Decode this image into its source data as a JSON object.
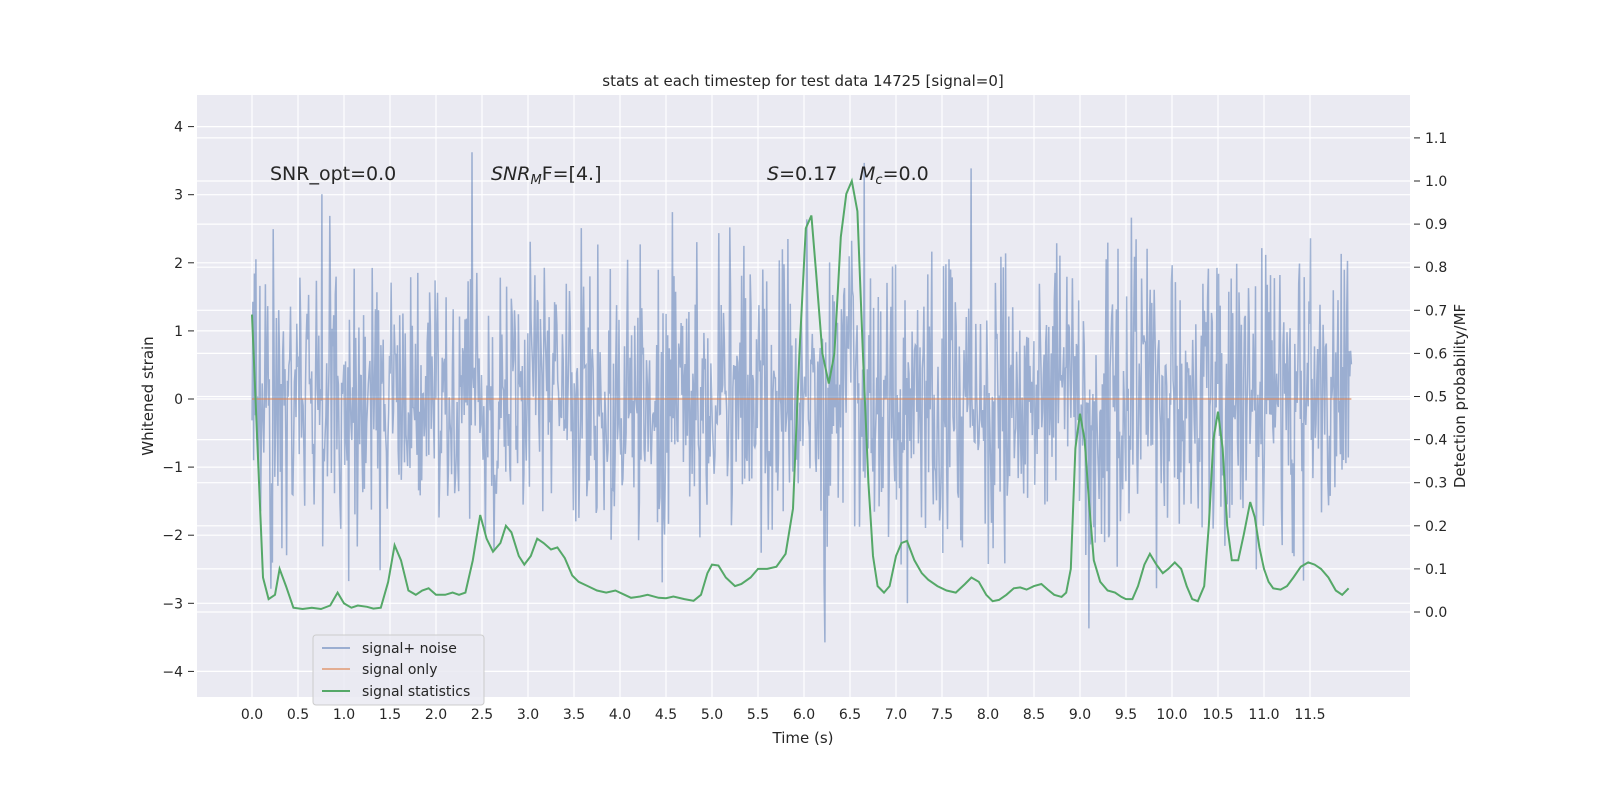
{
  "chart_data": {
    "type": "line",
    "title": "stats at each timestep for test data 14725 [signal=0]",
    "xlabel": "Time (s)",
    "ylabel_left": "Whitened strain",
    "ylabel_right": "Detection probability/MF",
    "xlim": [
      -0.6,
      12.6
    ],
    "ylim_left": [
      -4.4,
      4.4
    ],
    "ylim_right": [
      -0.2,
      1.2
    ],
    "x_ticks": [
      "0.0",
      "0.5",
      "1.0",
      "1.5",
      "2.0",
      "2.5",
      "3.0",
      "3.5",
      "4.0",
      "4.5",
      "5.0",
      "5.5",
      "6.0",
      "6.5",
      "7.0",
      "7.5",
      "8.0",
      "8.5",
      "9.0",
      "9.5",
      "10.0",
      "10.5",
      "11.0",
      "11.5"
    ],
    "y_ticks_left": [
      "4",
      "3",
      "2",
      "1",
      "0",
      "−1",
      "−2",
      "−3",
      "−4"
    ],
    "y_ticks_right": [
      "1.1",
      "1.0",
      "0.9",
      "0.8",
      "0.7",
      "0.6",
      "0.5",
      "0.4",
      "0.3",
      "0.2",
      "0.1",
      "0.0"
    ],
    "grid": true,
    "legend_position": "lower-left",
    "annotations": {
      "snr_opt": "SNR_opt=0.0",
      "snr_mf_main": "SNR",
      "snr_mf_sub": "M",
      "snr_mf_rest": "F=[4.]",
      "s_var": "S",
      "s_rest": "=0.17",
      "mc_var": "M",
      "mc_sub": "c",
      "mc_rest": "=0.0"
    },
    "series": [
      {
        "name": "signal+ noise",
        "color": "#4c72b0",
        "axis": "left",
        "x_range": [
          0,
          11.95
        ],
        "y_extremes": [
          -4.0,
          4.1
        ]
      },
      {
        "name": "signal only",
        "color": "#dd8452",
        "axis": "left",
        "x": [
          0,
          11.95
        ],
        "y": [
          0,
          0
        ]
      },
      {
        "name": "signal statistics",
        "color": "#55a868",
        "axis": "right",
        "x": [
          0.0,
          0.12,
          0.18,
          0.25,
          0.3,
          0.37,
          0.45,
          0.55,
          0.65,
          0.75,
          0.85,
          0.93,
          1.0,
          1.08,
          1.15,
          1.25,
          1.32,
          1.4,
          1.48,
          1.55,
          1.62,
          1.7,
          1.78,
          1.85,
          1.92,
          2.0,
          2.1,
          2.18,
          2.25,
          2.32,
          2.4,
          2.48,
          2.55,
          2.62,
          2.7,
          2.76,
          2.82,
          2.9,
          2.96,
          3.03,
          3.1,
          3.17,
          3.25,
          3.32,
          3.4,
          3.48,
          3.55,
          3.65,
          3.75,
          3.85,
          3.95,
          4.05,
          4.12,
          4.22,
          4.3,
          4.42,
          4.5,
          4.58,
          4.7,
          4.8,
          4.88,
          4.95,
          5.0,
          5.07,
          5.15,
          5.25,
          5.32,
          5.42,
          5.5,
          5.6,
          5.7,
          5.8,
          5.88,
          5.95,
          6.02,
          6.08,
          6.13,
          6.2,
          6.27,
          6.33,
          6.4,
          6.46,
          6.52,
          6.58,
          6.64,
          6.7,
          6.75,
          6.8,
          6.87,
          6.93,
          7.0,
          7.06,
          7.12,
          7.2,
          7.28,
          7.35,
          7.45,
          7.55,
          7.65,
          7.75,
          7.82,
          7.9,
          7.98,
          8.05,
          8.12,
          8.2,
          8.28,
          8.35,
          8.42,
          8.5,
          8.58,
          8.65,
          8.72,
          8.8,
          8.85,
          8.9,
          8.95,
          9.0,
          9.05,
          9.1,
          9.15,
          9.22,
          9.3,
          9.38,
          9.45,
          9.5,
          9.57,
          9.63,
          9.7,
          9.76,
          9.83,
          9.9,
          9.96,
          10.03,
          10.1,
          10.16,
          10.22,
          10.28,
          10.35,
          10.4,
          10.45,
          10.5,
          10.55,
          10.6,
          10.65,
          10.72,
          10.78,
          10.85,
          10.9,
          10.95,
          11.0,
          11.05,
          11.1,
          11.18,
          11.25,
          11.32,
          11.4,
          11.48,
          11.55,
          11.62,
          11.7,
          11.78,
          11.85,
          11.92
        ],
        "y": [
          0.69,
          0.08,
          0.03,
          0.04,
          0.1,
          0.06,
          0.01,
          0.007,
          0.01,
          0.007,
          0.015,
          0.045,
          0.02,
          0.01,
          0.015,
          0.012,
          0.008,
          0.01,
          0.07,
          0.155,
          0.12,
          0.05,
          0.04,
          0.05,
          0.055,
          0.04,
          0.04,
          0.045,
          0.04,
          0.045,
          0.12,
          0.225,
          0.17,
          0.14,
          0.16,
          0.2,
          0.185,
          0.13,
          0.11,
          0.13,
          0.17,
          0.16,
          0.145,
          0.15,
          0.125,
          0.085,
          0.07,
          0.06,
          0.05,
          0.045,
          0.05,
          0.04,
          0.033,
          0.036,
          0.04,
          0.033,
          0.032,
          0.036,
          0.03,
          0.026,
          0.04,
          0.09,
          0.11,
          0.108,
          0.08,
          0.06,
          0.065,
          0.08,
          0.1,
          0.1,
          0.105,
          0.135,
          0.24,
          0.6,
          0.89,
          0.92,
          0.79,
          0.6,
          0.53,
          0.6,
          0.87,
          0.97,
          1.0,
          0.93,
          0.6,
          0.3,
          0.13,
          0.06,
          0.045,
          0.06,
          0.13,
          0.16,
          0.165,
          0.12,
          0.09,
          0.075,
          0.06,
          0.05,
          0.045,
          0.065,
          0.08,
          0.07,
          0.04,
          0.025,
          0.028,
          0.04,
          0.055,
          0.057,
          0.052,
          0.06,
          0.065,
          0.052,
          0.04,
          0.035,
          0.045,
          0.1,
          0.38,
          0.46,
          0.4,
          0.25,
          0.12,
          0.07,
          0.05,
          0.045,
          0.035,
          0.03,
          0.03,
          0.06,
          0.11,
          0.135,
          0.11,
          0.09,
          0.1,
          0.115,
          0.1,
          0.06,
          0.03,
          0.025,
          0.06,
          0.2,
          0.4,
          0.465,
          0.38,
          0.2,
          0.12,
          0.12,
          0.18,
          0.255,
          0.22,
          0.15,
          0.1,
          0.07,
          0.055,
          0.052,
          0.06,
          0.08,
          0.105,
          0.115,
          0.11,
          0.1,
          0.08,
          0.05,
          0.04,
          0.055
        ]
      }
    ]
  }
}
